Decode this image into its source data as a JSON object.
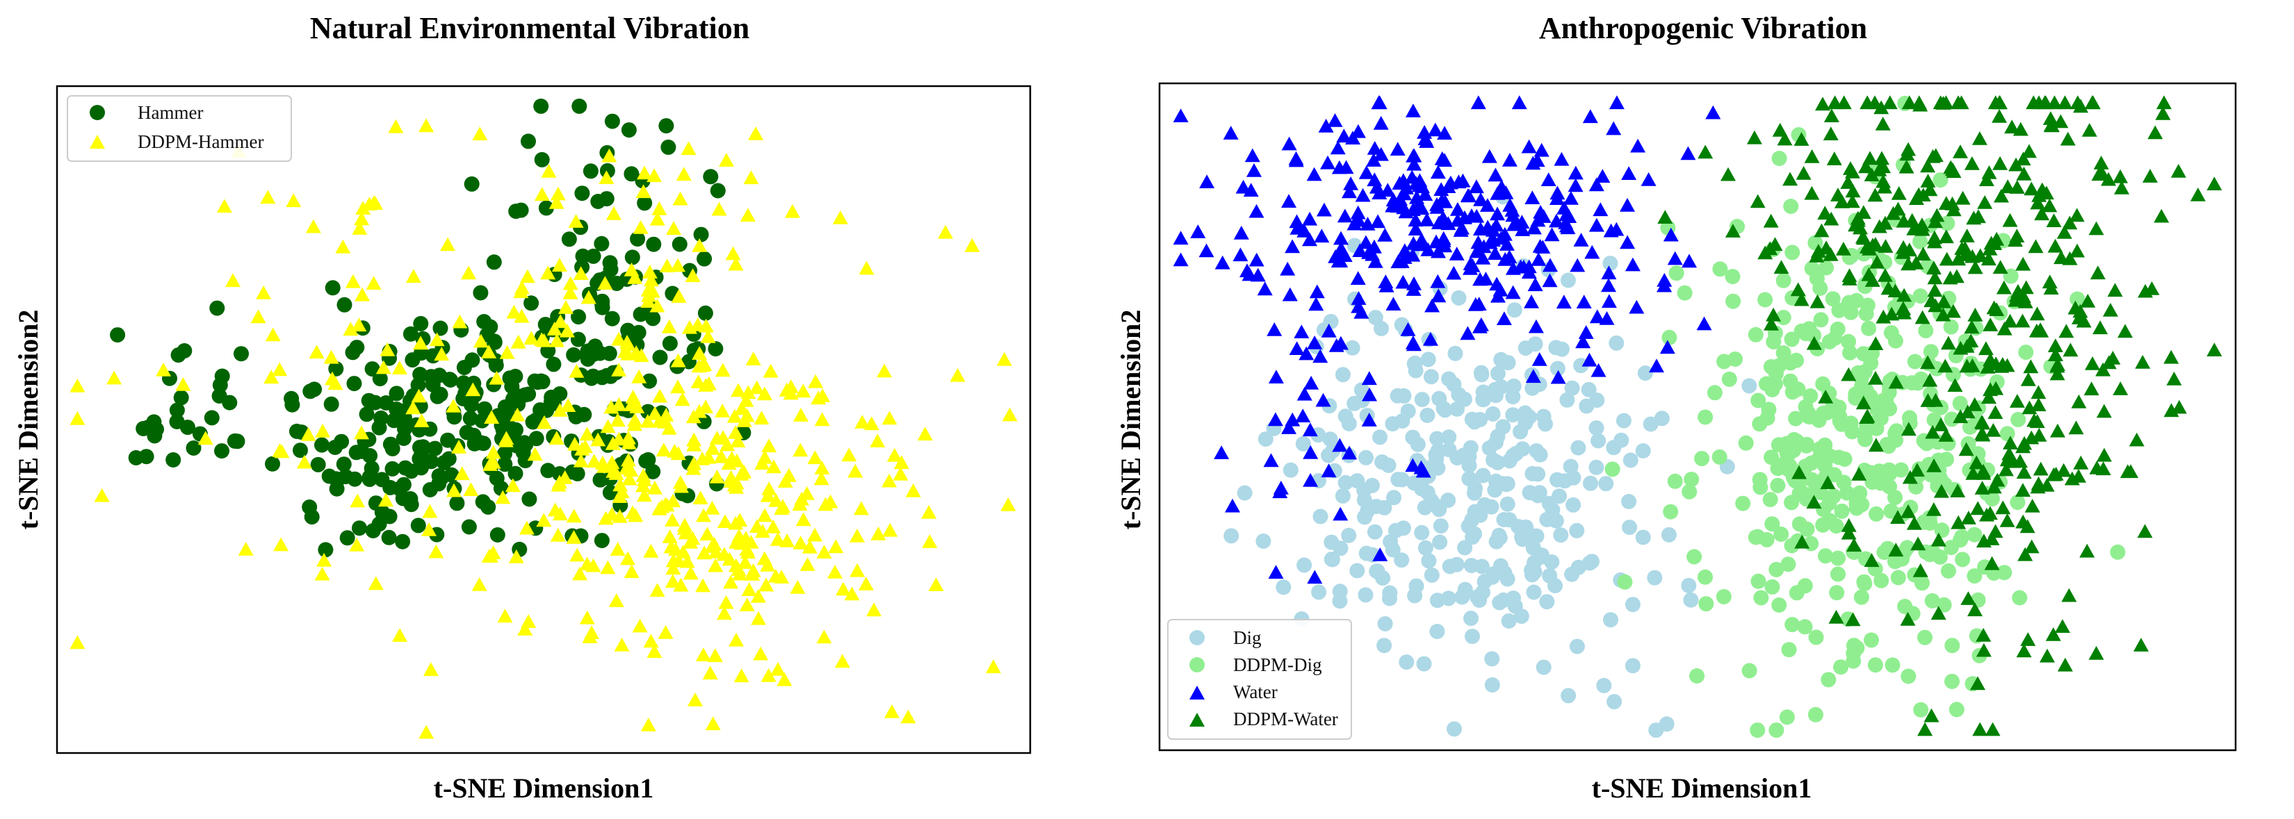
{
  "chart_data": [
    {
      "type": "scatter",
      "title": "Natural Environmental Vibration",
      "xlabel": "t-SNE Dimension1",
      "ylabel": "t-SNE Dimension2",
      "xlim": [
        -60,
        60
      ],
      "ylim": [
        -40,
        45
      ],
      "grid": false,
      "legend_position": "top-left",
      "series": [
        {
          "name": "Hammer",
          "marker": "circle",
          "color": "#006400",
          "clusters": [
            {
              "cx": -6,
              "cy": 2,
              "sx": 12,
              "sy": 8,
              "n": 230
            },
            {
              "cx": 10,
              "cy": 22,
              "sx": 6,
              "sy": 10,
              "n": 70
            },
            {
              "cx": -47,
              "cy": 3,
              "sx": 4,
              "sy": 4,
              "n": 28
            },
            {
              "cx": -22,
              "cy": -3,
              "sx": 6,
              "sy": 5,
              "n": 40
            }
          ]
        },
        {
          "name": "DDPM-Hammer",
          "marker": "triangle",
          "color": "#ffff00",
          "clusters": [
            {
              "cx": 22,
              "cy": -8,
              "sx": 13,
              "sy": 12,
              "n": 280
            },
            {
              "cx": -10,
              "cy": 5,
              "sx": 22,
              "sy": 16,
              "n": 150
            },
            {
              "cx": 12,
              "cy": 25,
              "sx": 6,
              "sy": 9,
              "n": 40
            }
          ]
        }
      ]
    },
    {
      "type": "scatter",
      "title": "Anthropogenic Vibration",
      "xlabel": "t-SNE Dimension1",
      "ylabel": "t-SNE Dimension2",
      "xlim": [
        -60,
        60
      ],
      "ylim": [
        -40,
        45
      ],
      "grid": false,
      "legend_position": "bottom-left",
      "series": [
        {
          "name": "Dig",
          "marker": "circle",
          "color": "#add8e6",
          "clusters": [
            {
              "cx": -25,
              "cy": -5,
              "sx": 10,
              "sy": 13,
              "n": 330
            }
          ]
        },
        {
          "name": "DDPM-Dig",
          "marker": "circle",
          "color": "#90ee90",
          "clusters": [
            {
              "cx": 18,
              "cy": 0,
              "sx": 9,
              "sy": 17,
              "n": 400
            }
          ]
        },
        {
          "name": "Water",
          "marker": "triangle",
          "color": "#0000ff",
          "clusters": [
            {
              "cx": -28,
              "cy": 28,
              "sx": 12,
              "sy": 8,
              "n": 300
            },
            {
              "cx": -44,
              "cy": 6,
              "sx": 5,
              "sy": 12,
              "n": 40
            }
          ]
        },
        {
          "name": "DDPM-Water",
          "marker": "triangle",
          "color": "#008000",
          "clusters": [
            {
              "cx": 34,
              "cy": 12,
              "sx": 10,
              "sy": 21,
              "n": 360
            },
            {
              "cx": 20,
              "cy": 32,
              "sx": 10,
              "sy": 5,
              "n": 80
            }
          ]
        }
      ]
    }
  ]
}
